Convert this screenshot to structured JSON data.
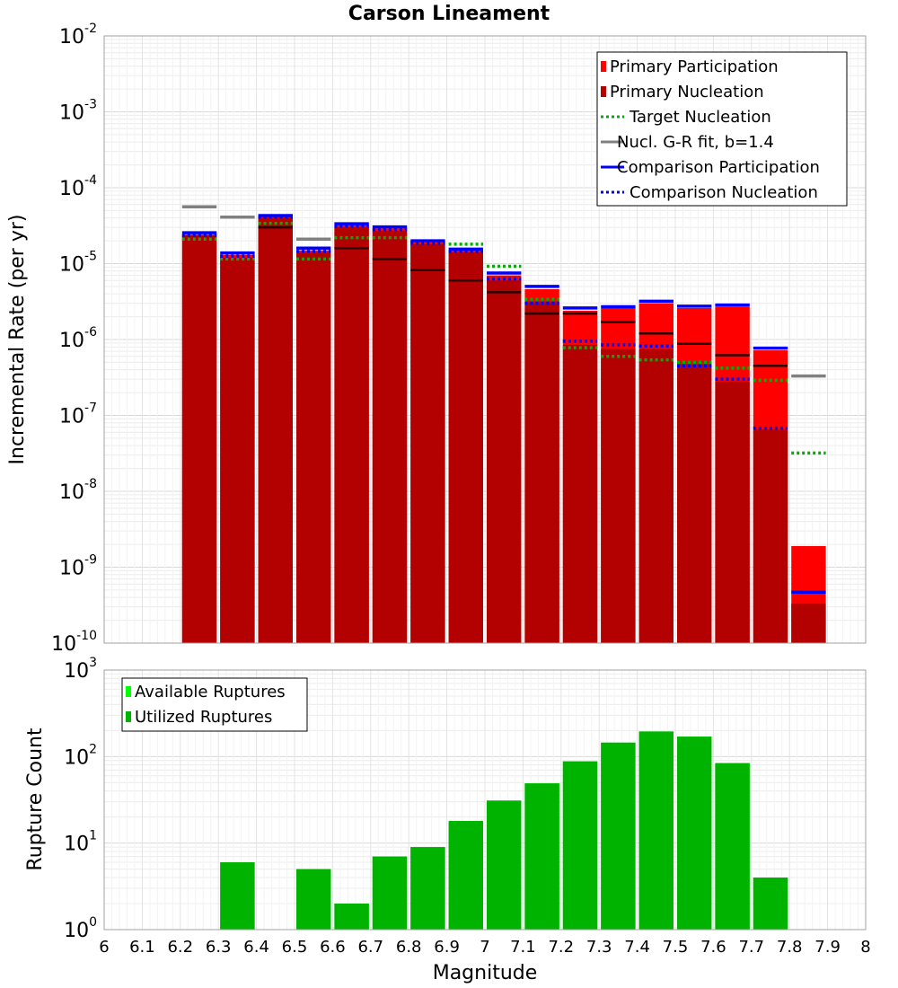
{
  "colors": {
    "primary_participation": "#ff0000",
    "primary_nucleation": "#b30000",
    "target_nucleation": "#00b000",
    "gr_fit": "#808080",
    "comparison": "#0000ff",
    "available_ruptures": "#00ff00",
    "utilized_ruptures": "#00b300"
  },
  "chart_data": [
    {
      "type": "bar",
      "title": "Carson Lineament",
      "xlabel": "",
      "ylabel": "Incremental Rate (per yr)",
      "y_scale": "log",
      "ylim": [
        1e-10,
        0.01
      ],
      "xlim": [
        6,
        8
      ],
      "grid": true,
      "legend_position": "top-right",
      "x": [
        6.25,
        6.35,
        6.45,
        6.55,
        6.65,
        6.75,
        6.85,
        6.95,
        7.05,
        7.15,
        7.25,
        7.35,
        7.45,
        7.55,
        7.65,
        7.75,
        7.85
      ],
      "y_ticks": [
        {
          "base": "10",
          "exp": "-2",
          "value": 0.01
        },
        {
          "base": "10",
          "exp": "-3",
          "value": 0.001
        },
        {
          "base": "10",
          "exp": "-4",
          "value": 0.0001
        },
        {
          "base": "10",
          "exp": "-5",
          "value": 1e-05
        },
        {
          "base": "10",
          "exp": "-6",
          "value": 1e-06
        },
        {
          "base": "10",
          "exp": "-7",
          "value": 1e-07
        },
        {
          "base": "10",
          "exp": "-8",
          "value": 1e-08
        },
        {
          "base": "10",
          "exp": "-9",
          "value": 1e-09
        },
        {
          "base": "10",
          "exp": "-10",
          "value": 1e-10
        }
      ],
      "series": [
        {
          "name": "Primary Participation",
          "style": "bar",
          "color_key": "primary_participation",
          "values": [
            2.4e-05,
            1.3e-05,
            4.2e-05,
            1.5e-05,
            3.2e-05,
            2.9e-05,
            1.9e-05,
            1.5e-05,
            7e-06,
            4.6e-06,
            2.4e-06,
            2.6e-06,
            3e-06,
            2.6e-06,
            2.7e-06,
            7.2e-07,
            1.9e-09
          ]
        },
        {
          "name": "Primary Nucleation",
          "style": "bar",
          "color_key": "primary_nucleation",
          "values": [
            2.4e-05,
            1.2e-05,
            4e-05,
            1.4e-05,
            3e-05,
            2.7e-05,
            1.8e-05,
            1.4e-05,
            6e-06,
            3.1e-06,
            8.5e-07,
            7.5e-07,
            7.5e-07,
            4.7e-07,
            2.8e-07,
            6.5e-08,
            3.3e-10
          ]
        },
        {
          "name": "Target Nucleation",
          "style": "dotted",
          "color_key": "target_nucleation",
          "values": [
            2.1e-05,
            1.15e-05,
            3.4e-05,
            1.15e-05,
            2.2e-05,
            2.2e-05,
            1.9e-05,
            1.8e-05,
            9.2e-06,
            3.4e-06,
            7.8e-07,
            6e-07,
            5.4e-07,
            5e-07,
            4.2e-07,
            2.9e-07,
            3.2e-08
          ]
        },
        {
          "name": "Nucl. G-R fit, b=1.4",
          "style": "solid",
          "color_key": "gr_fit",
          "values": [
            5.6e-05,
            4.1e-05,
            null,
            2.1e-05,
            null,
            null,
            null,
            null,
            null,
            null,
            null,
            null,
            null,
            null,
            null,
            null,
            3.3e-07
          ]
        },
        {
          "name": "Comparison Participation",
          "style": "solid",
          "color_key": "comparison",
          "values": [
            2.55e-05,
            1.38e-05,
            4.3e-05,
            1.6e-05,
            3.35e-05,
            3.05e-05,
            2e-05,
            1.55e-05,
            7.5e-06,
            5e-06,
            2.6e-06,
            2.7e-06,
            3.2e-06,
            2.75e-06,
            2.85e-06,
            7.7e-07,
            4.7e-10
          ]
        },
        {
          "name": "Comparison Nucleation",
          "style": "dotted",
          "color_key": "comparison",
          "values": [
            2.35e-05,
            1.25e-05,
            4.1e-05,
            1.45e-05,
            3.1e-05,
            2.8e-05,
            1.85e-05,
            1.45e-05,
            6.3e-06,
            3e-06,
            9.5e-07,
            8.5e-07,
            8.2e-07,
            4.5e-07,
            3e-07,
            6.8e-08,
            null
          ]
        }
      ],
      "secondary_marks": {
        "name": "nucleation fit ticks",
        "values": [
          null,
          null,
          3e-05,
          null,
          1.6e-05,
          1.15e-05,
          8.2e-06,
          6e-06,
          4.2e-06,
          2.2e-06,
          2.2e-06,
          1.7e-06,
          1.2e-06,
          8.8e-07,
          6.2e-07,
          4.5e-07,
          null
        ]
      },
      "legend": [
        {
          "label": "Primary Participation",
          "swatch": "square",
          "color_key": "primary_participation"
        },
        {
          "label": "Primary Nucleation",
          "swatch": "square",
          "color_key": "primary_nucleation"
        },
        {
          "label": "Target Nucleation",
          "swatch": "dotted",
          "color_key": "target_nucleation"
        },
        {
          "label": "Nucl. G-R fit, b=1.4",
          "swatch": "solid",
          "color_key": "gr_fit"
        },
        {
          "label": "Comparison Participation",
          "swatch": "solid",
          "color_key": "comparison"
        },
        {
          "label": "Comparison Nucleation",
          "swatch": "dotted",
          "color_key": "comparison"
        }
      ]
    },
    {
      "type": "bar",
      "title": "",
      "xlabel": "Magnitude",
      "ylabel": "Rupture Count",
      "y_scale": "log",
      "ylim": [
        1,
        1000
      ],
      "xlim": [
        6,
        8
      ],
      "grid": true,
      "legend_position": "top-left",
      "x_ticks": [
        "6",
        "6.1",
        "6.2",
        "6.3",
        "6.4",
        "6.5",
        "6.6",
        "6.7",
        "6.8",
        "6.9",
        "7",
        "7.1",
        "7.2",
        "7.3",
        "7.4",
        "7.5",
        "7.6",
        "7.7",
        "7.8",
        "7.9",
        "8"
      ],
      "y_ticks": [
        {
          "base": "10",
          "exp": "3",
          "value": 1000
        },
        {
          "base": "10",
          "exp": "2",
          "value": 100
        },
        {
          "base": "10",
          "exp": "1",
          "value": 10
        },
        {
          "base": "10",
          "exp": "0",
          "value": 1
        }
      ],
      "x": [
        6.35,
        6.55,
        6.65,
        6.75,
        6.85,
        6.95,
        7.05,
        7.15,
        7.25,
        7.35,
        7.45,
        7.55,
        7.65,
        7.75
      ],
      "series": [
        {
          "name": "Available Ruptures",
          "color_key": "available_ruptures",
          "values": [
            6,
            5,
            2,
            7,
            9,
            18,
            31,
            49,
            88,
            145,
            195,
            170,
            84,
            4
          ]
        },
        {
          "name": "Utilized Ruptures",
          "color_key": "utilized_ruptures",
          "values": [
            6,
            5,
            2,
            7,
            9,
            18,
            31,
            49,
            88,
            145,
            195,
            170,
            84,
            4
          ]
        }
      ],
      "legend": [
        {
          "label": "Available Ruptures",
          "swatch": "square",
          "color_key": "available_ruptures"
        },
        {
          "label": "Utilized Ruptures",
          "swatch": "square",
          "color_key": "utilized_ruptures"
        }
      ]
    }
  ]
}
